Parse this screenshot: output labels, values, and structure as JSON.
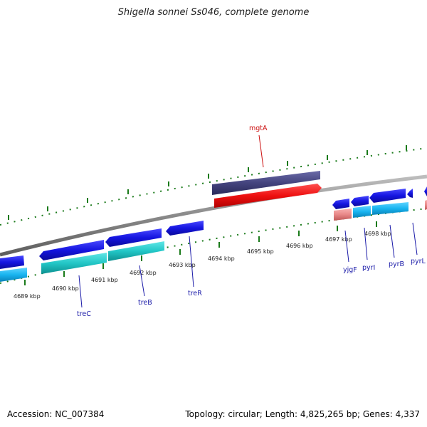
{
  "title": "Shigella sonnei Ss046, complete genome",
  "footer": {
    "accession": "Accession: NC_007384",
    "info": "Topology: circular; Length: 4,825,265 bp; Genes: 4,337"
  },
  "scale_labels": [
    "4689 kbp",
    "4690 kbp",
    "4691 kbp",
    "4692 kbp",
    "4693 kbp",
    "4694 kbp",
    "4695 kbp",
    "4696 kbp",
    "4697 kbp",
    "4698 kbp"
  ],
  "gene_labels": [
    "mgtA",
    "treC",
    "treB",
    "treR",
    "yjgF",
    "pyrI",
    "pyrB",
    "pyrL"
  ],
  "colors": {
    "forward_cds": "#e01010",
    "forward_gene": "#40407a",
    "reverse_cds": "#1010d8",
    "reverse_gene_teal": "#20c4c4",
    "reverse_gene_cyan": "#10b8f0",
    "pseudo": "#e88888",
    "ticks": "#1a7a1a",
    "backbone": "#8a8a8a"
  }
}
